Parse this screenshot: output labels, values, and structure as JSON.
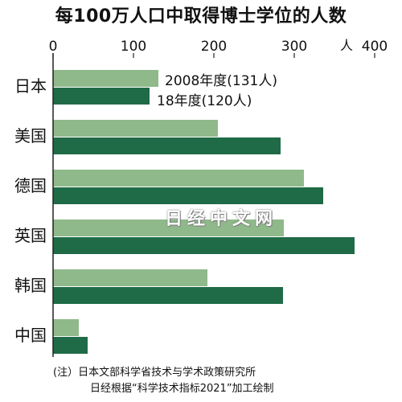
{
  "chart_data": {
    "type": "bar",
    "orientation": "horizontal",
    "title": "每100万人口中取得博士学位的人数",
    "unit_label": "人",
    "xlim": [
      0,
      400
    ],
    "ticks": [
      "0",
      "100",
      "200",
      "300",
      "400"
    ],
    "categories": [
      "日本",
      "美国",
      "德国",
      "英国",
      "韩国",
      "中国"
    ],
    "series": [
      {
        "name": "2008年度",
        "color": "#8fb98a",
        "values": [
          131,
          205,
          312,
          287,
          192,
          32
        ]
      },
      {
        "name": "18年度",
        "color": "#1f6b47",
        "values": [
          120,
          283,
          336,
          375,
          286,
          43
        ]
      }
    ],
    "legend_labels": [
      "2008年度(131人)",
      "18年度(120人)"
    ],
    "grid": false
  },
  "notes": {
    "line1": "(注）日本文部科学省技术与学术政策研究所",
    "line2": "日经根据“科学技术指标2021”加工绘制"
  },
  "watermark": "日经中文网"
}
